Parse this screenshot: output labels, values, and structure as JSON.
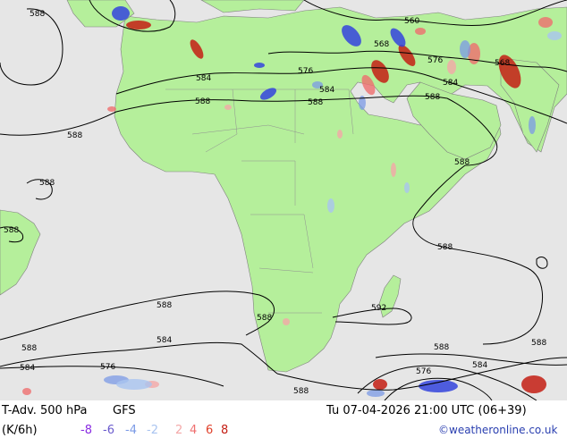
{
  "footer": {
    "title": "T-Adv. 500 hPa",
    "model": "GFS",
    "units": "(K/6h)",
    "valid_time": "Tu 07-04-2026 21:00 UTC (06+39)",
    "credit": "©weatheronline.co.uk"
  },
  "legend": [
    {
      "label": "-8",
      "color": "#8a2be2"
    },
    {
      "label": "-6",
      "color": "#6a5acd"
    },
    {
      "label": "-4",
      "color": "#7b9ae6"
    },
    {
      "label": "-2",
      "color": "#a9c4f0"
    },
    {
      "label": "2",
      "color": "#f4a8a8"
    },
    {
      "label": "4",
      "color": "#ef6f6f"
    },
    {
      "label": "6",
      "color": "#e0402a"
    },
    {
      "label": "8",
      "color": "#c41e14"
    }
  ],
  "isolines": [
    {
      "label": "588"
    },
    {
      "label": "560"
    },
    {
      "label": "568"
    },
    {
      "label": "576"
    },
    {
      "label": "584"
    },
    {
      "label": "576"
    },
    {
      "label": "568"
    },
    {
      "label": "584"
    },
    {
      "label": "588"
    },
    {
      "label": "584"
    },
    {
      "label": "588"
    },
    {
      "label": "588"
    },
    {
      "label": "588"
    },
    {
      "label": "588"
    },
    {
      "label": "588"
    },
    {
      "label": "588"
    },
    {
      "label": "588"
    },
    {
      "label": "592"
    },
    {
      "label": "588"
    },
    {
      "label": "584"
    },
    {
      "label": "588"
    },
    {
      "label": "588"
    },
    {
      "label": "584"
    },
    {
      "label": "576"
    },
    {
      "label": "576"
    },
    {
      "label": "584"
    },
    {
      "label": "588"
    },
    {
      "label": "588"
    },
    {
      "label": "588"
    },
    {
      "label": "588"
    }
  ],
  "colors": {
    "land": "#b5ef9b",
    "ocean": "#e6e6e6",
    "border": "#8c8c8c"
  }
}
